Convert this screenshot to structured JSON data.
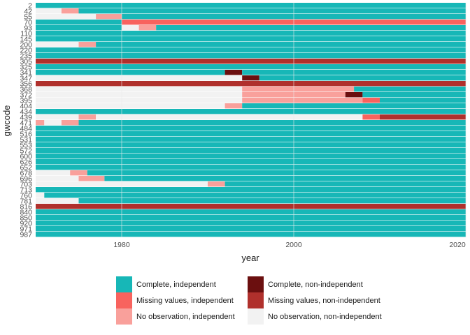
{
  "chart_data": {
    "type": "heatmap",
    "xlabel": "year",
    "ylabel": "gwcode",
    "xlim": [
      1970,
      2020
    ],
    "x_ticks": [
      1980,
      2000,
      2020
    ],
    "y_tick_labels": [
      "2",
      "42",
      "55",
      "70",
      "93",
      "110",
      "145",
      "200",
      "220",
      "235",
      "305",
      "325",
      "341",
      "347",
      "356",
      "368",
      "372",
      "395",
      "404",
      "434",
      "439",
      "471",
      "484",
      "516",
      "531",
      "553",
      "572",
      "600",
      "626",
      "652",
      "678",
      "696",
      "703",
      "713",
      "760",
      "781",
      "816",
      "840",
      "850",
      "920",
      "971",
      "987"
    ],
    "legend": {
      "position": "bottom",
      "items": [
        {
          "label": "Complete, independent",
          "color": "#17b7b7"
        },
        {
          "label": "Complete, non-independent",
          "color": "#6b0f0f"
        },
        {
          "label": "Missing values, independent",
          "color": "#f8635e"
        },
        {
          "label": "Missing values, non-independent",
          "color": "#b0302c"
        },
        {
          "label": "No observation, independent",
          "color": "#f9a09b"
        },
        {
          "label": "No observation, non-independent",
          "color": "#f2f2f2"
        }
      ]
    },
    "category_order": [
      "ci",
      "cn",
      "mi",
      "mn",
      "ni",
      "nn"
    ],
    "colors": {
      "ci": "#17b7b7",
      "cn": "#6b0f0f",
      "mi": "#f8635e",
      "mn": "#b0302c",
      "ni": "#f9a09b",
      "nn": "#f2f2f2"
    },
    "rows": [
      {
        "gwcode": "2",
        "segments": [
          [
            "ci",
            1970,
            2020
          ]
        ]
      },
      {
        "gwcode": "42",
        "segments": [
          [
            "nn",
            1970,
            1973
          ],
          [
            "ni",
            1973,
            1975
          ],
          [
            "ci",
            1975,
            2020
          ]
        ]
      },
      {
        "gwcode": "55",
        "segments": [
          [
            "nn",
            1970,
            1977
          ],
          [
            "ni",
            1977,
            1980
          ],
          [
            "ci",
            1980,
            2020
          ]
        ]
      },
      {
        "gwcode": "70",
        "segments": [
          [
            "ci",
            1970,
            1980
          ],
          [
            "mi",
            1980,
            2020
          ]
        ]
      },
      {
        "gwcode": "93",
        "segments": [
          [
            "ci",
            1970,
            1980
          ],
          [
            "nn",
            1980,
            1982
          ],
          [
            "ni",
            1982,
            1984
          ],
          [
            "ci",
            1984,
            2020
          ]
        ]
      },
      {
        "gwcode": "110",
        "segments": [
          [
            "ci",
            1970,
            2020
          ]
        ]
      },
      {
        "gwcode": "145",
        "segments": [
          [
            "ci",
            1970,
            2020
          ]
        ]
      },
      {
        "gwcode": "200",
        "segments": [
          [
            "nn",
            1970,
            1975
          ],
          [
            "ni",
            1975,
            1977
          ],
          [
            "ci",
            1977,
            2020
          ]
        ]
      },
      {
        "gwcode": "220",
        "segments": [
          [
            "ci",
            1970,
            2020
          ]
        ]
      },
      {
        "gwcode": "235",
        "segments": [
          [
            "ci",
            1970,
            2020
          ]
        ]
      },
      {
        "gwcode": "305",
        "segments": [
          [
            "mn",
            1970,
            2020
          ]
        ]
      },
      {
        "gwcode": "325",
        "segments": [
          [
            "ci",
            1970,
            2020
          ]
        ]
      },
      {
        "gwcode": "341",
        "segments": [
          [
            "ci",
            1970,
            1992
          ],
          [
            "cn",
            1992,
            1994
          ],
          [
            "ci",
            1994,
            2020
          ]
        ]
      },
      {
        "gwcode": "347",
        "segments": [
          [
            "nn",
            1970,
            1994
          ],
          [
            "cn",
            1994,
            1996
          ],
          [
            "ci",
            1996,
            2020
          ]
        ]
      },
      {
        "gwcode": "356",
        "segments": [
          [
            "mn",
            1970,
            2020
          ]
        ]
      },
      {
        "gwcode": "368",
        "segments": [
          [
            "nn",
            1970,
            1994
          ],
          [
            "ni",
            1994,
            2007
          ],
          [
            "ci",
            2007,
            2020
          ]
        ]
      },
      {
        "gwcode": "372",
        "segments": [
          [
            "nn",
            1970,
            1994
          ],
          [
            "ni",
            1994,
            2006
          ],
          [
            "cn",
            2006,
            2008
          ],
          [
            "ci",
            2008,
            2020
          ]
        ]
      },
      {
        "gwcode": "395",
        "segments": [
          [
            "nn",
            1970,
            1994
          ],
          [
            "ni",
            1994,
            2008
          ],
          [
            "mi",
            2008,
            2010
          ],
          [
            "ci",
            2010,
            2020
          ]
        ]
      },
      {
        "gwcode": "404",
        "segments": [
          [
            "nn",
            1970,
            1992
          ],
          [
            "ni",
            1992,
            1994
          ],
          [
            "ci",
            1994,
            2020
          ]
        ]
      },
      {
        "gwcode": "434",
        "segments": [
          [
            "ci",
            1970,
            2020
          ]
        ]
      },
      {
        "gwcode": "439",
        "segments": [
          [
            "nn",
            1970,
            1975
          ],
          [
            "ni",
            1975,
            1977
          ],
          [
            "nn",
            1977,
            2008
          ],
          [
            "mi",
            2008,
            2010
          ],
          [
            "mn",
            2010,
            2020
          ]
        ]
      },
      {
        "gwcode": "471",
        "segments": [
          [
            "ni",
            1970,
            1971
          ],
          [
            "nn",
            1971,
            1973
          ],
          [
            "ni",
            1973,
            1975
          ],
          [
            "ci",
            1975,
            2020
          ]
        ]
      },
      {
        "gwcode": "484",
        "segments": [
          [
            "ci",
            1970,
            2020
          ]
        ]
      },
      {
        "gwcode": "516",
        "segments": [
          [
            "ci",
            1970,
            2020
          ]
        ]
      },
      {
        "gwcode": "531",
        "segments": [
          [
            "ci",
            1970,
            2020
          ]
        ]
      },
      {
        "gwcode": "553",
        "segments": [
          [
            "ci",
            1970,
            2020
          ]
        ]
      },
      {
        "gwcode": "572",
        "segments": [
          [
            "ci",
            1970,
            2020
          ]
        ]
      },
      {
        "gwcode": "600",
        "segments": [
          [
            "ci",
            1970,
            2020
          ]
        ]
      },
      {
        "gwcode": "626",
        "segments": [
          [
            "ci",
            1970,
            2020
          ]
        ]
      },
      {
        "gwcode": "652",
        "segments": [
          [
            "ci",
            1970,
            2020
          ]
        ]
      },
      {
        "gwcode": "678",
        "segments": [
          [
            "nn",
            1970,
            1974
          ],
          [
            "ni",
            1974,
            1976
          ],
          [
            "ci",
            1976,
            2020
          ]
        ]
      },
      {
        "gwcode": "696",
        "segments": [
          [
            "nn",
            1970,
            1975
          ],
          [
            "ni",
            1975,
            1978
          ],
          [
            "ci",
            1978,
            2020
          ]
        ]
      },
      {
        "gwcode": "703",
        "segments": [
          [
            "nn",
            1970,
            1990
          ],
          [
            "ni",
            1990,
            1992
          ],
          [
            "ci",
            1992,
            2020
          ]
        ]
      },
      {
        "gwcode": "713",
        "segments": [
          [
            "ci",
            1970,
            2020
          ]
        ]
      },
      {
        "gwcode": "760",
        "segments": [
          [
            "nn",
            1970,
            1971
          ],
          [
            "ci",
            1971,
            2020
          ]
        ]
      },
      {
        "gwcode": "781",
        "segments": [
          [
            "nn",
            1970,
            1975
          ],
          [
            "ci",
            1975,
            2020
          ]
        ]
      },
      {
        "gwcode": "816",
        "segments": [
          [
            "mn",
            1970,
            2020
          ]
        ]
      },
      {
        "gwcode": "840",
        "segments": [
          [
            "ci",
            1970,
            2020
          ]
        ]
      },
      {
        "gwcode": "850",
        "segments": [
          [
            "ci",
            1970,
            2020
          ]
        ]
      },
      {
        "gwcode": "920",
        "segments": [
          [
            "ci",
            1970,
            2020
          ]
        ]
      },
      {
        "gwcode": "971",
        "segments": [
          [
            "ci",
            1970,
            2020
          ]
        ]
      },
      {
        "gwcode": "987",
        "segments": [
          [
            "ci",
            1970,
            2020
          ]
        ]
      }
    ]
  }
}
